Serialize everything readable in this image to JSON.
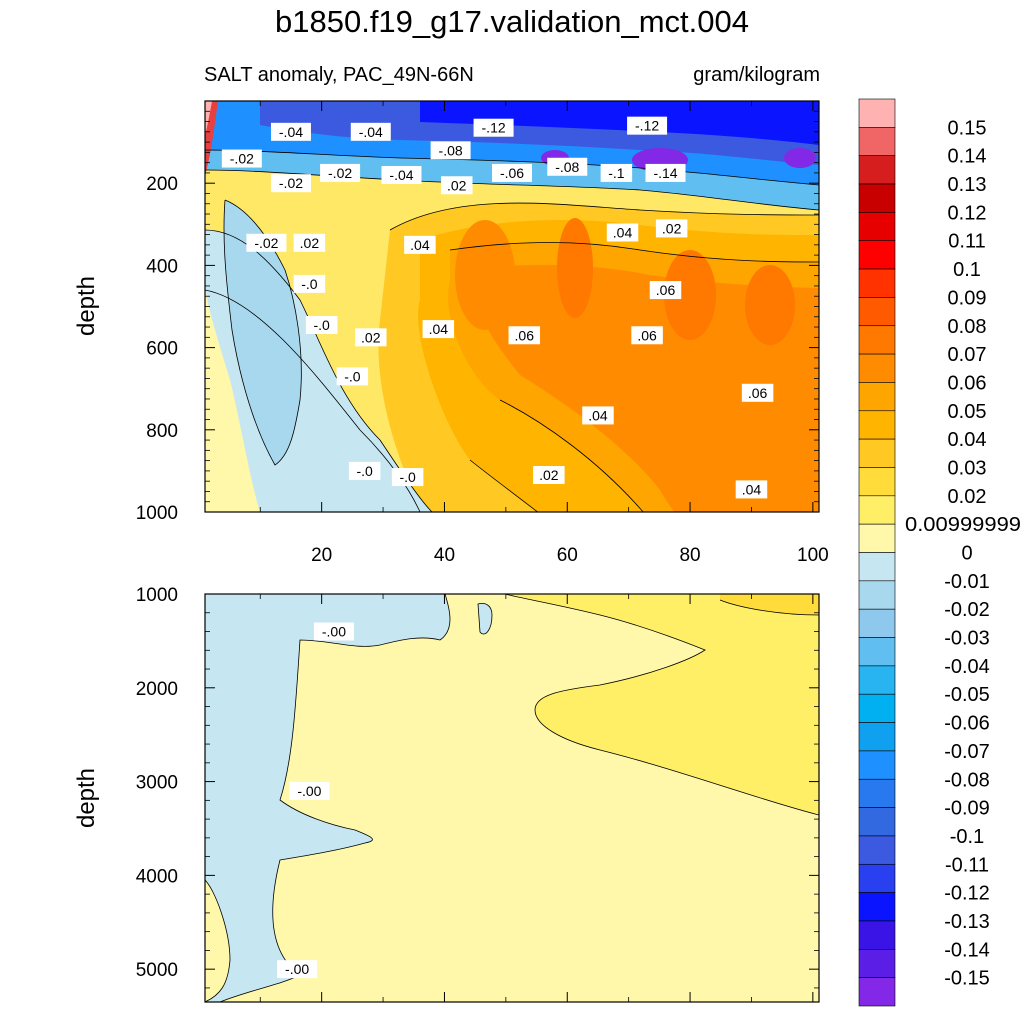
{
  "figure": {
    "title": "b1850.f19_g17.validation_mct.004",
    "left_subtitle": "SALT anomaly, PAC_49N-66N",
    "right_subtitle": "gram/kilogram"
  },
  "colorbar": {
    "labels": [
      "0.15",
      "0.14",
      "0.13",
      "0.12",
      "0.11",
      "0.1",
      "0.09",
      "0.08",
      "0.07",
      "0.06",
      "0.05",
      "0.04",
      "0.03",
      "0.02",
      "0.00999999",
      "0",
      "-0.01",
      "-0.02",
      "-0.03",
      "-0.04",
      "-0.05",
      "-0.06",
      "-0.07",
      "-0.08",
      "-0.09",
      "-0.1",
      "-0.11",
      "-0.12",
      "-0.13",
      "-0.14",
      "-0.15"
    ],
    "colors": [
      "#ffb2b2",
      "#f06666",
      "#d61e1e",
      "#c80000",
      "#e60000",
      "#ff0000",
      "#ff3200",
      "#ff5a00",
      "#ff7800",
      "#ff8c00",
      "#ffa500",
      "#ffb400",
      "#ffc822",
      "#ffdc3a",
      "#ffef66",
      "#fff8aa",
      "#c6e6f2",
      "#a8d8ee",
      "#8ec8ec",
      "#60bff0",
      "#28b4f0",
      "#00b0f0",
      "#10a0f0",
      "#1e90ff",
      "#2878f0",
      "#3268e0",
      "#3c5ae0",
      "#2840f0",
      "#0a14ff",
      "#3a14e6",
      "#5a1ee6",
      "#8228e6"
    ]
  },
  "chart_data": [
    {
      "type": "heatmap",
      "panel": "upper",
      "title": "SALT anomaly, PAC_49N-66N",
      "units": "gram/kilogram",
      "xlabel": "",
      "ylabel": "depth",
      "xlim": [
        1,
        101
      ],
      "ylim": [
        0,
        1000
      ],
      "y_reversed": true,
      "x_ticks": [
        20,
        40,
        60,
        80,
        100
      ],
      "y_ticks": [
        200,
        400,
        600,
        800,
        1000
      ],
      "contour_labels": [
        {
          "text": "-.04",
          "x": 15,
          "y": 75
        },
        {
          "text": "-.04",
          "x": 28,
          "y": 75
        },
        {
          "text": "-.12",
          "x": 48,
          "y": 65
        },
        {
          "text": "-.12",
          "x": 73,
          "y": 60
        },
        {
          "text": "-.08",
          "x": 41,
          "y": 120
        },
        {
          "text": "-.02",
          "x": 7,
          "y": 140
        },
        {
          "text": "-.02",
          "x": 23,
          "y": 175
        },
        {
          "text": "-.04",
          "x": 33,
          "y": 180
        },
        {
          "text": "-.06",
          "x": 51,
          "y": 175
        },
        {
          "text": "-.08",
          "x": 60,
          "y": 160
        },
        {
          "text": "-.1",
          "x": 68,
          "y": 175
        },
        {
          "text": "-.14",
          "x": 76,
          "y": 175
        },
        {
          "text": "-.02",
          "x": 15,
          "y": 200
        },
        {
          "text": ".02",
          "x": 42,
          "y": 205
        },
        {
          "text": "-.02",
          "x": 11,
          "y": 345
        },
        {
          "text": ".02",
          "x": 18,
          "y": 345
        },
        {
          "text": ".04",
          "x": 36,
          "y": 350
        },
        {
          "text": ".04",
          "x": 69,
          "y": 320
        },
        {
          "text": ".02",
          "x": 77,
          "y": 310
        },
        {
          "text": "-.0",
          "x": 18,
          "y": 445
        },
        {
          "text": ".06",
          "x": 76,
          "y": 460
        },
        {
          "text": "-.0",
          "x": 20,
          "y": 545
        },
        {
          "text": ".02",
          "x": 28,
          "y": 575
        },
        {
          "text": ".04",
          "x": 39,
          "y": 555
        },
        {
          "text": ".06",
          "x": 53,
          "y": 570
        },
        {
          "text": ".06",
          "x": 73,
          "y": 570
        },
        {
          "text": "-.0",
          "x": 25,
          "y": 670
        },
        {
          "text": ".06",
          "x": 91,
          "y": 710
        },
        {
          "text": ".04",
          "x": 65,
          "y": 765
        },
        {
          "text": "-.0",
          "x": 27,
          "y": 900
        },
        {
          "text": "-.0",
          "x": 34,
          "y": 915
        },
        {
          "text": ".02",
          "x": 57,
          "y": 910
        },
        {
          "text": ".04",
          "x": 90,
          "y": 945
        }
      ]
    },
    {
      "type": "heatmap",
      "panel": "lower",
      "xlabel": "",
      "ylabel": "depth",
      "xlim": [
        1,
        101
      ],
      "ylim": [
        1000,
        5350
      ],
      "y_reversed": true,
      "y_ticks": [
        1000,
        2000,
        3000,
        4000,
        5000
      ],
      "contour_labels": [
        {
          "text": "-.00",
          "x": 22,
          "y": 1400
        },
        {
          "text": "-.00",
          "x": 18,
          "y": 3100
        },
        {
          "text": "-.00",
          "x": 16,
          "y": 5000
        }
      ]
    }
  ]
}
